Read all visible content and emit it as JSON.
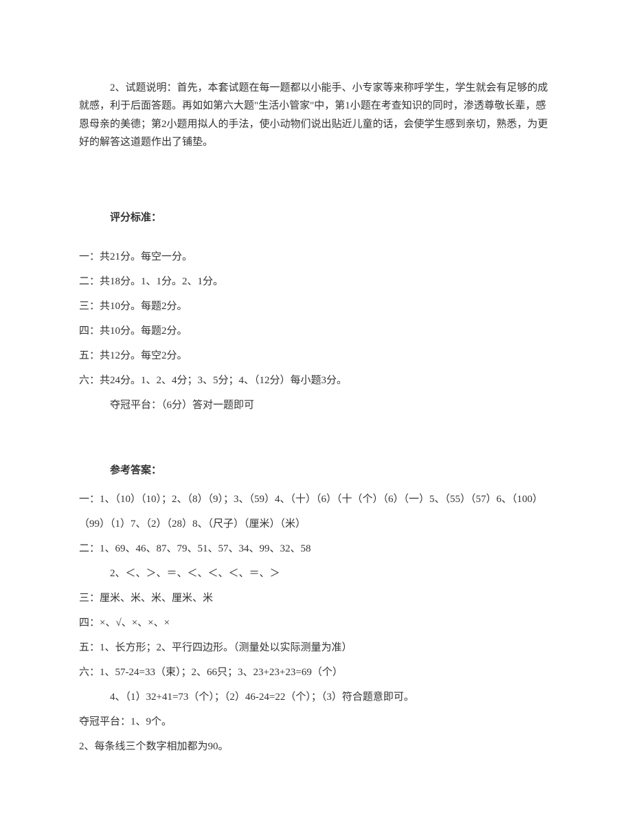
{
  "intro": "2、试题说明：首先，本套试题在每一题都以小能手、小专家等来称呼学生，学生就会有足够的成就感，利于后面答题。再如如第六大题\"生活小管家\"中，第1小题在考查知识的同时，渗透尊敬长辈，感恩母亲的美德；第2小题用拟人的手法，使小动物们说出贴近儿童的话，会使学生感到亲切，熟悉，为更好的解答这道题作出了铺垫。",
  "scoring": {
    "title": "评分标准：",
    "lines": [
      "一：共21分。每空一分。",
      "二：共18分。1、1分。2、1分。",
      "三：共10分。每题2分。",
      "四：共10分。每题2分。",
      "五：共12分。每空2分。",
      "六：共24分。1、2、4分；3、5分；4、（12分）每小题3分。"
    ],
    "indented_line": "夺冠平台：（6分）答对一题即可"
  },
  "answers": {
    "title": "参考答案：",
    "lines": [
      "一：1、（10）（10）；2、（8）（9）；3、（59）4、（十）（6）（十（个）（6）（一）5、（55）（57）6、（100）（99）（1）7、（2）（28）8、（尺子）（厘米）（米）",
      "二：1、69、46、87、79、51、57、34、99、32、58"
    ],
    "indented_line_1": "2、＜、＞、＝、＜、＜、＜、＝、＞",
    "lines_2": [
      "三：厘米、米、米、厘米、米",
      "四：×、√、×、×、×",
      "五：1、长方形；2、平行四边形。（测量处以实际测量为准）",
      "六：1、57-24=33（束）；2、66只；3、23+23+23=69（个）"
    ],
    "indented_line_2": "4、（1）32+41=73（个）；（2）46-24=22（个）；（3）符合题意即可。",
    "lines_3": [
      "夺冠平台：1、9个。",
      "2、每条线三个数字相加都为90。"
    ]
  }
}
